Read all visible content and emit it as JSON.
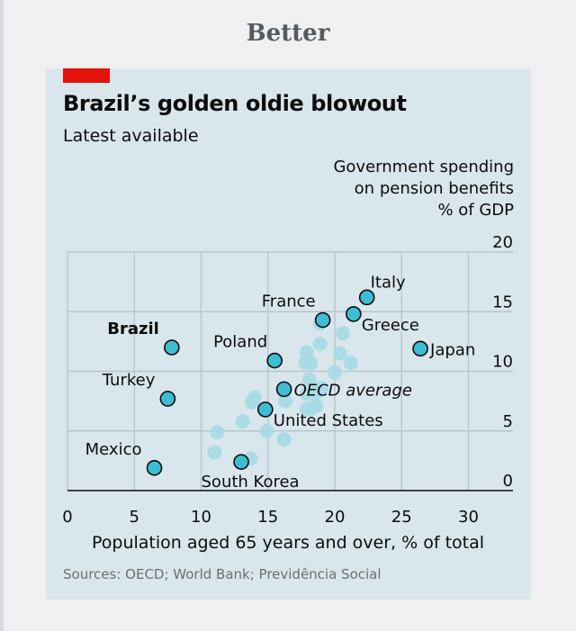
{
  "page": {
    "heading": "Better"
  },
  "chart_data": {
    "type": "scatter",
    "title": "Brazil’s golden oldie blowout",
    "subtitle": "Latest available",
    "ylabel_lines": [
      "Government spending",
      "on pension benefits",
      "% of GDP"
    ],
    "xlabel": "Population aged 65 years and over, % of total",
    "source": "Sources: OECD; World Bank; Previdência Social",
    "xlim": [
      0,
      33
    ],
    "ylim": [
      0,
      20
    ],
    "xticks": [
      0,
      5,
      10,
      15,
      20,
      25,
      30
    ],
    "yticks": [
      0,
      5,
      10,
      15,
      20
    ],
    "grid": true,
    "highlight_color": "#3ebcd2",
    "background_color": "#a5dae5",
    "highlighted": [
      {
        "label": "Italy",
        "x": 22.4,
        "y": 16.2,
        "label_pos": "above"
      },
      {
        "label": "France",
        "x": 19.1,
        "y": 14.3,
        "label_pos": "above-left"
      },
      {
        "label": "Greece",
        "x": 21.4,
        "y": 14.8,
        "label_pos": "right-below"
      },
      {
        "label": "Brazil",
        "x": 7.8,
        "y": 12.0,
        "label_pos": "left-above",
        "bold": true
      },
      {
        "label": "Japan",
        "x": 26.4,
        "y": 11.9,
        "label_pos": "right"
      },
      {
        "label": "Poland",
        "x": 15.5,
        "y": 10.9,
        "label_pos": "above-left"
      },
      {
        "label": "OECD average",
        "x": 16.2,
        "y": 8.5,
        "label_pos": "right",
        "italic": true
      },
      {
        "label": "Turkey",
        "x": 7.5,
        "y": 7.7,
        "label_pos": "left-above"
      },
      {
        "label": "United States",
        "x": 14.8,
        "y": 6.8,
        "label_pos": "right-below"
      },
      {
        "label": "Mexico",
        "x": 6.5,
        "y": 1.9,
        "label_pos": "left-above"
      },
      {
        "label": "South Korea",
        "x": 13.0,
        "y": 2.4,
        "label_pos": "below"
      }
    ],
    "background_points": [
      [
        18.9,
        14.0
      ],
      [
        20.6,
        13.2
      ],
      [
        18.9,
        12.3
      ],
      [
        17.9,
        11.6
      ],
      [
        20.4,
        11.5
      ],
      [
        18.2,
        10.7
      ],
      [
        17.8,
        10.7
      ],
      [
        21.2,
        10.7
      ],
      [
        20.0,
        9.9
      ],
      [
        18.1,
        9.3
      ],
      [
        19.0,
        8.6
      ],
      [
        18.6,
        8.2
      ],
      [
        17.9,
        8.1
      ],
      [
        14.0,
        7.8
      ],
      [
        13.8,
        7.4
      ],
      [
        16.3,
        7.5
      ],
      [
        18.6,
        7.1
      ],
      [
        17.9,
        6.8
      ],
      [
        18.3,
        6.9
      ],
      [
        13.1,
        5.8
      ],
      [
        11.2,
        4.9
      ],
      [
        14.9,
        5.0
      ],
      [
        16.2,
        4.3
      ],
      [
        11.0,
        3.2
      ],
      [
        13.7,
        2.7
      ]
    ]
  }
}
